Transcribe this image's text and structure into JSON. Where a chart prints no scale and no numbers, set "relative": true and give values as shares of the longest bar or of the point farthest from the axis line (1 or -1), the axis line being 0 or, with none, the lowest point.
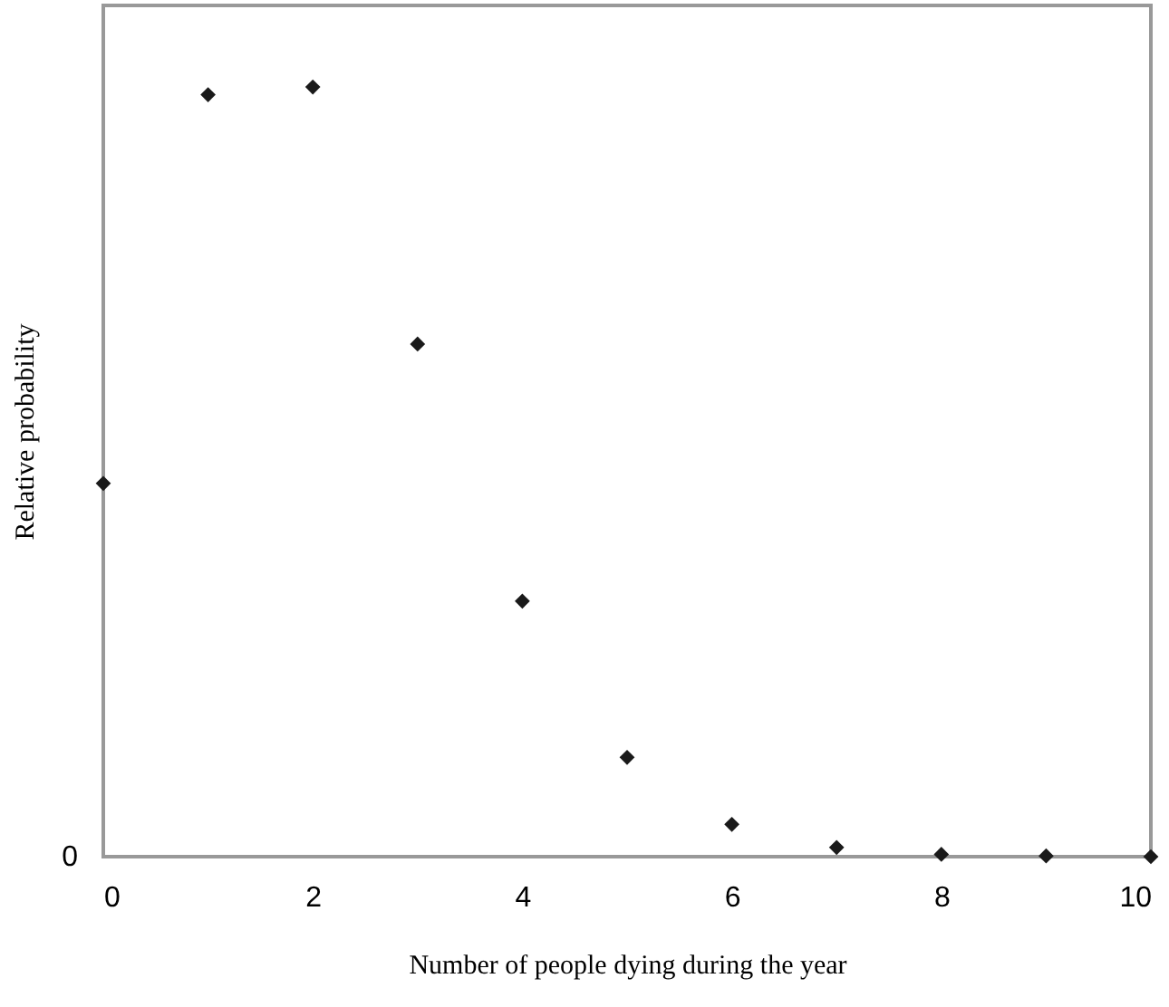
{
  "chart_data": {
    "type": "scatter",
    "xlabel": "Number of people dying during the year",
    "ylabel": "Relative probability",
    "relative": true,
    "x": [
      0,
      1,
      2,
      3,
      4,
      5,
      6,
      7,
      8,
      9,
      10
    ],
    "values": [
      0.485,
      0.99,
      1,
      0.666,
      0.332,
      0.129,
      0.042,
      0.012,
      0.003,
      0.001,
      0
    ],
    "color": "#1a1a1a",
    "marker": "diamond",
    "xlim": [
      0,
      10
    ],
    "xticks": [
      0,
      2,
      4,
      6,
      8,
      10
    ],
    "grid": false,
    "annotations": [
      "0"
    ]
  }
}
